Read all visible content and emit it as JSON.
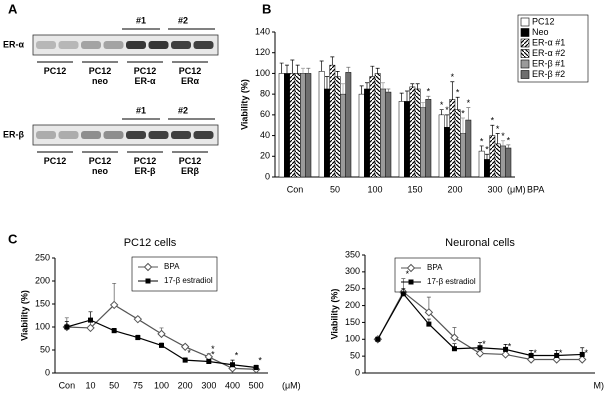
{
  "panel_a": {
    "label": "A",
    "blot_alpha": {
      "protein": "ER-α",
      "clone_1": "#1",
      "clone_2": "#2",
      "lanes": [
        "PC12",
        "PC12\nneo",
        "PC12\nER-α",
        "PC12\nERα"
      ]
    },
    "blot_beta": {
      "protein": "ER-β",
      "clone_1": "#1",
      "clone_2": "#2",
      "lanes": [
        "PC12",
        "PC12\nneo",
        "PC12\nER-β",
        "PC12\nERβ"
      ]
    }
  },
  "panel_b_label": "B",
  "panel_c_label": "C",
  "chart_data": [
    {
      "type": "bar",
      "ylabel": "Viability (%)",
      "xlabel": "BPA",
      "x_unit": "(μM)",
      "significance_label": "*",
      "categories": [
        "Con",
        "50",
        "100",
        "150",
        "200",
        "300"
      ],
      "ylim": [
        0,
        140
      ],
      "yticks": [
        0,
        20,
        40,
        60,
        80,
        100,
        120,
        140
      ],
      "series": [
        {
          "name": "PC12",
          "color": "#ffffff",
          "values": [
            100,
            102,
            80,
            73,
            60,
            25
          ],
          "errors": [
            10,
            10,
            8,
            8,
            5,
            5
          ],
          "significant": [
            false,
            false,
            false,
            false,
            true,
            true
          ]
        },
        {
          "name": "Neo",
          "color": "#000000",
          "values": [
            100,
            85,
            85,
            73,
            48,
            17
          ],
          "errors": [
            8,
            12,
            6,
            10,
            12,
            5
          ],
          "significant": [
            false,
            false,
            false,
            false,
            true,
            true
          ]
        },
        {
          "name": "ER-α #1",
          "color": "#ffffff",
          "hatch": "fwd",
          "values": [
            100,
            108,
            97,
            87,
            75,
            40
          ],
          "errors": [
            13,
            8,
            10,
            3,
            17,
            10
          ],
          "significant": [
            false,
            false,
            false,
            false,
            true,
            true
          ]
        },
        {
          "name": "ER-α #2",
          "color": "#ffffff",
          "hatch": "back",
          "values": [
            100,
            97,
            100,
            85,
            65,
            32
          ],
          "errors": [
            8,
            5,
            5,
            5,
            12,
            10
          ],
          "significant": [
            false,
            false,
            false,
            false,
            true,
            true
          ]
        },
        {
          "name": "ER-β #1",
          "color": "#9a9a9a",
          "values": [
            100,
            80,
            85,
            67,
            42,
            30
          ],
          "errors": [
            5,
            10,
            6,
            5,
            15,
            5
          ],
          "significant": [
            false,
            false,
            false,
            false,
            true,
            true
          ]
        },
        {
          "name": "ER-β #2",
          "color": "#6e6e6e",
          "values": [
            100,
            101,
            82,
            75,
            55,
            28
          ],
          "errors": [
            5,
            5,
            3,
            3,
            12,
            3
          ],
          "significant": [
            false,
            false,
            false,
            true,
            true,
            true
          ]
        }
      ]
    },
    {
      "type": "line",
      "title": "PC12 cells",
      "ylabel": "Viability (%)",
      "x_unit": "(μM)",
      "significance_label": "*",
      "categories": [
        "Con",
        "10",
        "50",
        "75",
        "100",
        "200",
        "300",
        "400",
        "500"
      ],
      "ylim": [
        0,
        250
      ],
      "yticks": [
        0,
        50,
        100,
        150,
        200,
        250
      ],
      "series": [
        {
          "name": "BPA",
          "color": "#555555",
          "marker": "diamond-open",
          "values": [
            100,
            98,
            148,
            117,
            85,
            57,
            35,
            10,
            8
          ],
          "errors": [
            20,
            20,
            47,
            5,
            13,
            5,
            7,
            3,
            3
          ],
          "significant": [
            false,
            false,
            false,
            false,
            false,
            false,
            true,
            false,
            false
          ]
        },
        {
          "name": "17-β estradiol",
          "color": "#000000",
          "marker": "square",
          "values": [
            100,
            115,
            92,
            77,
            60,
            28,
            25,
            18,
            12
          ],
          "errors": [
            12,
            18,
            5,
            5,
            5,
            5,
            5,
            10,
            5
          ],
          "significant": [
            false,
            false,
            false,
            false,
            false,
            true,
            true,
            true,
            true
          ]
        }
      ]
    },
    {
      "type": "line",
      "title": "Neuronal cells",
      "ylabel": "Viability (%)",
      "x_unit": "M)",
      "significance_label": "*",
      "categories": [
        null,
        null,
        null,
        null,
        null,
        null,
        null,
        null,
        null
      ],
      "ylim": [
        0,
        350
      ],
      "yticks": [
        0,
        50,
        100,
        150,
        200,
        250,
        300,
        350
      ],
      "series": [
        {
          "name": "BPA",
          "color": "#555555",
          "marker": "diamond-open",
          "values": [
            100,
            240,
            180,
            105,
            58,
            55,
            40,
            40,
            40
          ],
          "errors": [
            5,
            40,
            45,
            30,
            15,
            10,
            5,
            5,
            5
          ],
          "significant": [
            false,
            true,
            false,
            false,
            true,
            true,
            true,
            true,
            true
          ]
        },
        {
          "name": "17-β estradiol",
          "color": "#000000",
          "marker": "square",
          "values": [
            100,
            235,
            145,
            72,
            75,
            70,
            52,
            52,
            55
          ],
          "errors": [
            5,
            15,
            15,
            15,
            15,
            15,
            15,
            15,
            20
          ],
          "significant": [
            false,
            false,
            false,
            false,
            false,
            false,
            false,
            false,
            false
          ]
        }
      ]
    }
  ]
}
